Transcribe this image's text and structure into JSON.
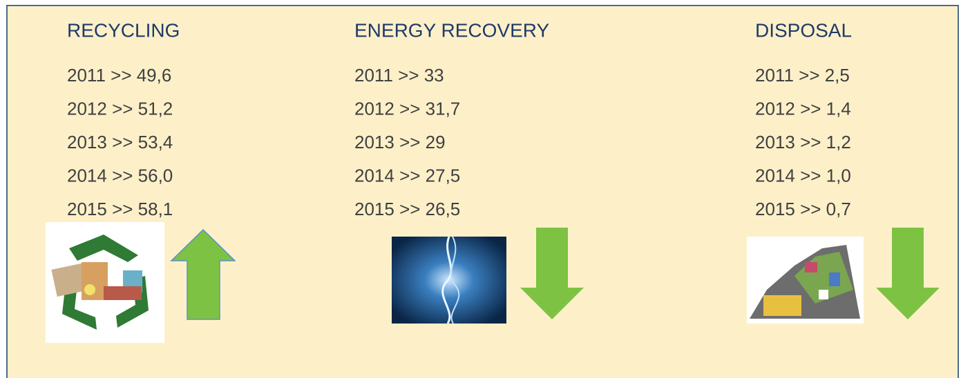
{
  "columns": [
    {
      "title": "RECYCLING",
      "lines": [
        "2011 >> 49,6",
        "2012 >> 51,2",
        "2013 >> 53,4",
        "2014 >> 56,0",
        "2015 >> 58,1"
      ]
    },
    {
      "title": "ENERGY RECOVERY",
      "lines": [
        "2011 >> 33",
        "2012 >> 31,7",
        "2013 >> 29",
        "2014 >> 27,5",
        "2015 >> 26,5"
      ]
    },
    {
      "title": "DISPOSAL",
      "lines": [
        "2011 >> 2,5",
        "2012 >> 1,4",
        "2013 >> 1,2",
        "2014 >> 1,0",
        "2015 >> 0,7"
      ]
    }
  ]
}
